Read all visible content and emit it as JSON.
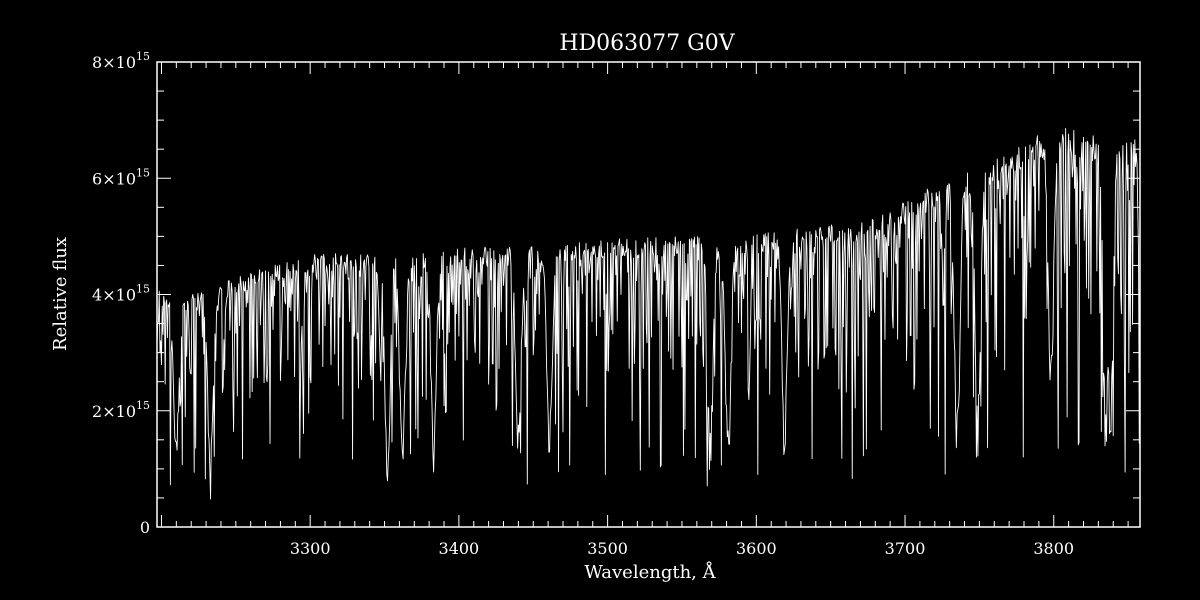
{
  "colors": {
    "background": "#000000",
    "foreground": "#ffffff"
  },
  "chart_data": {
    "type": "line",
    "title": "HD063077   G0V",
    "xlabel": "Wavelength, Å",
    "ylabel": "Relative flux",
    "xlim": [
      3197,
      3858
    ],
    "ylim": [
      0,
      8000000000000000.0
    ],
    "x_ticks": [
      {
        "value": 3300,
        "label": "3300"
      },
      {
        "value": 3400,
        "label": "3400"
      },
      {
        "value": 3500,
        "label": "3500"
      },
      {
        "value": 3600,
        "label": "3600"
      },
      {
        "value": 3700,
        "label": "3700"
      },
      {
        "value": 3800,
        "label": "3800"
      }
    ],
    "x_minor_step": 10,
    "y_ticks": [
      {
        "value": 0,
        "mantissa": "0",
        "exponent": ""
      },
      {
        "value": 2000000000000000.0,
        "mantissa": "2×10",
        "exponent": "15"
      },
      {
        "value": 4000000000000000.0,
        "mantissa": "4×10",
        "exponent": "15"
      },
      {
        "value": 6000000000000000.0,
        "mantissa": "6×10",
        "exponent": "15"
      },
      {
        "value": 8000000000000000.0,
        "mantissa": "8×10",
        "exponent": "15"
      }
    ],
    "y_minor_step": 1000000000000000.0,
    "continuum": {
      "x": [
        3197,
        3210,
        3230,
        3260,
        3300,
        3350,
        3400,
        3450,
        3500,
        3550,
        3600,
        3650,
        3680,
        3700,
        3720,
        3750,
        3780,
        3800,
        3820,
        3840,
        3858
      ],
      "y": [
        4100000000000000.0,
        3900000000000000.0,
        4100000000000000.0,
        4400000000000000.0,
        4700000000000000.0,
        4750000000000000.0,
        4800000000000000.0,
        4850000000000000.0,
        4950000000000000.0,
        5000000000000000.0,
        5050000000000000.0,
        5200000000000000.0,
        5300000000000000.0,
        5600000000000000.0,
        5900000000000000.0,
        6200000000000000.0,
        6600000000000000.0,
        6900000000000000.0,
        6800000000000000.0,
        6600000000000000.0,
        6800000000000000.0
      ]
    },
    "absorption_features": [
      {
        "x": 3210,
        "depth": 0.7
      },
      {
        "x": 3233,
        "depth": 0.9
      },
      {
        "x": 3352,
        "depth": 0.88
      },
      {
        "x": 3362,
        "depth": 0.85
      },
      {
        "x": 3383,
        "depth": 0.8
      },
      {
        "x": 3440,
        "depth": 0.82
      },
      {
        "x": 3461,
        "depth": 0.8
      },
      {
        "x": 3569,
        "depth": 0.85
      },
      {
        "x": 3581,
        "depth": 0.87
      },
      {
        "x": 3619,
        "depth": 0.8
      },
      {
        "x": 3735,
        "depth": 0.88
      },
      {
        "x": 3749,
        "depth": 0.85
      },
      {
        "x": 3798,
        "depth": 0.72
      },
      {
        "x": 3835,
        "depth": 0.87
      },
      {
        "x": 3838,
        "depth": 0.85
      }
    ],
    "sample_step": 0.5,
    "grid": false,
    "legend": "none"
  }
}
